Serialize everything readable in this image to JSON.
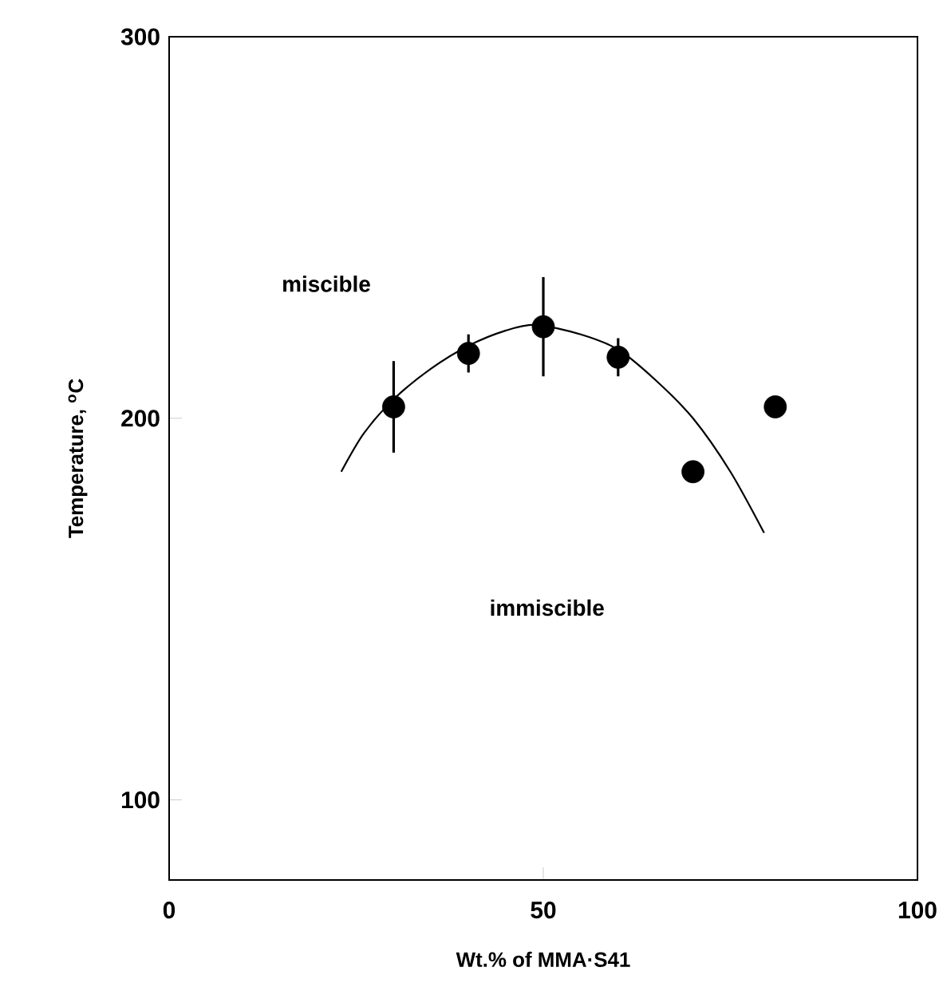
{
  "chart_data": {
    "type": "scatter",
    "xlabel": "Wt.% of MMA·S41",
    "ylabel": "Temperature, $^{o}$C",
    "xlim": [
      0,
      100
    ],
    "ylim": [
      79,
      300
    ],
    "xticks": [
      0,
      50,
      100
    ],
    "yticks": [
      100,
      200,
      300
    ],
    "series": [
      {
        "color": "#000000",
        "marker": "circle",
        "x": [
          30,
          40,
          50,
          60,
          70,
          81
        ],
        "values": [
          203,
          217,
          224,
          216,
          186,
          203
        ],
        "errors": [
          12,
          5,
          13,
          5,
          null,
          null
        ]
      },
      {
        "type": "line",
        "color": "#000000",
        "marker": "none",
        "x": [
          23,
          26,
          30,
          35,
          40,
          45,
          49,
          55,
          60,
          65,
          70,
          75,
          79.5
        ],
        "values": [
          186,
          196,
          205,
          213,
          219,
          223,
          224.5,
          222,
          218,
          210,
          200,
          186,
          170
        ]
      }
    ],
    "annotations": [
      "miscible",
      "immiscible"
    ]
  }
}
